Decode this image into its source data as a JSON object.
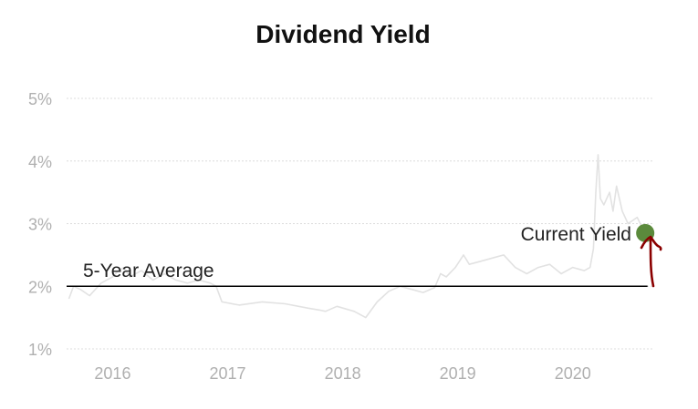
{
  "chart_data": {
    "type": "line",
    "title": "Dividend Yield",
    "xlabel": "",
    "ylabel": "",
    "x_ticks": [
      "2016",
      "2017",
      "2018",
      "2019",
      "2020"
    ],
    "x_range": [
      2015.6,
      2020.7
    ],
    "y_ticks": [
      "1%",
      "2%",
      "3%",
      "4%",
      "5%"
    ],
    "y_range": [
      1,
      5
    ],
    "grid": true,
    "series": [
      {
        "type": "line",
        "color": "#e2e2e2",
        "x": [
          2015.62,
          2015.66,
          2015.72,
          2015.8,
          2015.9,
          2016.0,
          2016.05,
          2016.1,
          2016.15,
          2016.25,
          2016.35,
          2016.45,
          2016.55,
          2016.65,
          2016.75,
          2016.85,
          2016.9,
          2016.95,
          2017.1,
          2017.3,
          2017.5,
          2017.7,
          2017.8,
          2017.85,
          2017.95,
          2018.1,
          2018.15,
          2018.2,
          2018.3,
          2018.4,
          2018.5,
          2018.6,
          2018.7,
          2018.8,
          2018.85,
          2018.9,
          2018.98,
          2019.05,
          2019.1,
          2019.2,
          2019.3,
          2019.4,
          2019.5,
          2019.6,
          2019.7,
          2019.8,
          2019.9,
          2020.0,
          2020.1,
          2020.15,
          2020.18,
          2020.2,
          2020.22,
          2020.24,
          2020.27,
          2020.32,
          2020.35,
          2020.38,
          2020.43,
          2020.48,
          2020.52,
          2020.56,
          2020.6,
          2020.65
        ],
        "y": [
          1.8,
          2.0,
          1.95,
          1.85,
          2.05,
          2.15,
          2.25,
          2.3,
          2.15,
          2.25,
          2.1,
          2.2,
          2.1,
          2.05,
          2.1,
          2.05,
          2.0,
          1.75,
          1.7,
          1.75,
          1.72,
          1.65,
          1.62,
          1.6,
          1.68,
          1.6,
          1.55,
          1.5,
          1.75,
          1.92,
          2.0,
          1.95,
          1.9,
          1.98,
          2.2,
          2.15,
          2.3,
          2.5,
          2.35,
          2.4,
          2.45,
          2.5,
          2.3,
          2.2,
          2.3,
          2.35,
          2.2,
          2.3,
          2.25,
          2.3,
          2.6,
          3.5,
          4.1,
          3.4,
          3.3,
          3.5,
          3.2,
          3.6,
          3.2,
          3.0,
          3.05,
          3.1,
          2.95,
          2.88
        ]
      },
      {
        "type": "hline",
        "name": "5-Year Average",
        "value": 2.0,
        "x_start": 2015.6,
        "x_end": 2020.65,
        "color": "#000000"
      },
      {
        "type": "point",
        "name": "Current Yield",
        "x": 2020.63,
        "y": 2.85,
        "color": "#5b8a3c"
      }
    ],
    "annotations": [
      {
        "text": "5-Year Average"
      },
      {
        "text": "Current Yield"
      }
    ],
    "hand_drawn_arrow_color": "#8b0000"
  }
}
